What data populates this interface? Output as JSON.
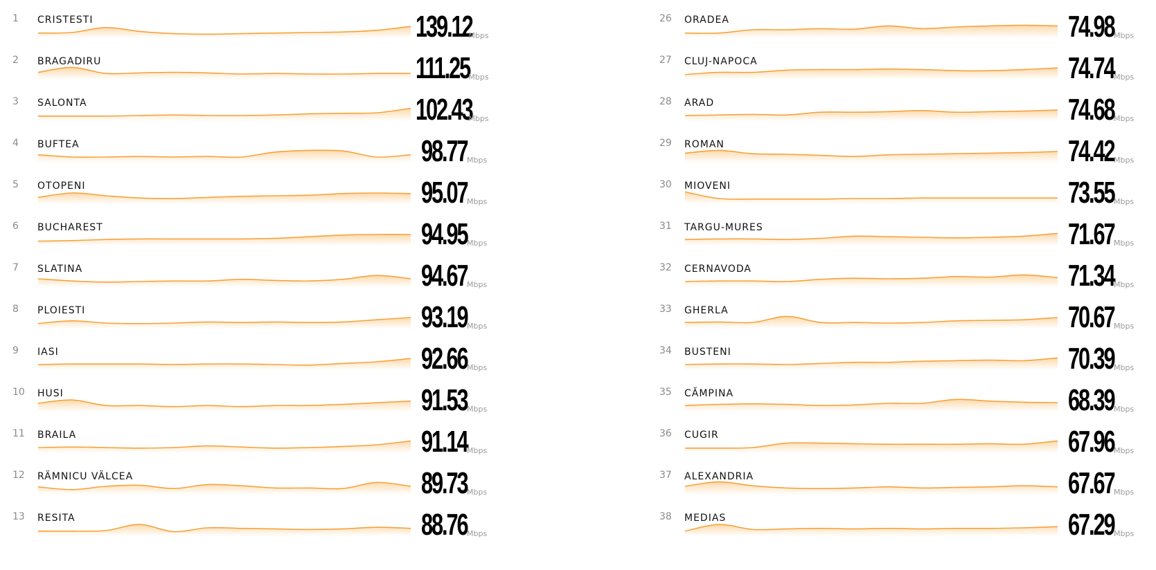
{
  "colors": {
    "line": "#f7a23b",
    "fill": "#fbd49e",
    "rank_text": "#8a8a8a",
    "city_text": "#111111",
    "value_text": "#000000",
    "unit_text": "#9a9a9a"
  },
  "chart_data": {
    "type": "table",
    "unit": "Mbps",
    "columns": [
      {
        "rows": [
          {
            "rank": "1",
            "city": "CRISTESTI",
            "value": "139.12",
            "unit": "Mbps",
            "trend": [
              0.2,
              0.25,
              0.7,
              0.35,
              0.15,
              0.1,
              0.15,
              0.2,
              0.25,
              0.3,
              0.45,
              0.8
            ]
          },
          {
            "rank": "2",
            "city": "BRAGADIRU",
            "value": "111.25",
            "unit": "Mbps",
            "trend": [
              0.4,
              0.85,
              0.3,
              0.35,
              0.4,
              0.35,
              0.25,
              0.3,
              0.25,
              0.25,
              0.3,
              0.3
            ]
          },
          {
            "rank": "3",
            "city": "SALONTA",
            "value": "102.43",
            "unit": "Mbps",
            "trend": [
              0.2,
              0.2,
              0.2,
              0.25,
              0.3,
              0.25,
              0.25,
              0.3,
              0.4,
              0.45,
              0.5,
              0.9
            ]
          },
          {
            "rank": "4",
            "city": "BUFTEA",
            "value": "98.77",
            "unit": "Mbps",
            "trend": [
              0.45,
              0.25,
              0.25,
              0.3,
              0.25,
              0.3,
              0.25,
              0.7,
              0.85,
              0.8,
              0.25,
              0.45
            ]
          },
          {
            "rank": "5",
            "city": "OTOPENI",
            "value": "95.07",
            "unit": "Mbps",
            "trend": [
              0.35,
              0.75,
              0.5,
              0.3,
              0.25,
              0.35,
              0.45,
              0.5,
              0.55,
              0.7,
              0.75,
              0.7
            ]
          },
          {
            "rank": "6",
            "city": "BUCHAREST",
            "value": "94.95",
            "unit": "Mbps",
            "trend": [
              0.15,
              0.2,
              0.3,
              0.35,
              0.35,
              0.35,
              0.35,
              0.4,
              0.55,
              0.7,
              0.75,
              0.75
            ]
          },
          {
            "rank": "7",
            "city": "SLATINA",
            "value": "94.67",
            "unit": "Mbps",
            "trend": [
              0.5,
              0.3,
              0.2,
              0.25,
              0.3,
              0.3,
              0.45,
              0.35,
              0.3,
              0.45,
              0.8,
              0.5
            ]
          },
          {
            "rank": "8",
            "city": "PLOIESTI",
            "value": "93.19",
            "unit": "Mbps",
            "trend": [
              0.2,
              0.45,
              0.25,
              0.2,
              0.25,
              0.35,
              0.3,
              0.35,
              0.3,
              0.35,
              0.55,
              0.75
            ]
          },
          {
            "rank": "9",
            "city": "IASI",
            "value": "92.66",
            "unit": "Mbps",
            "trend": [
              0.25,
              0.3,
              0.3,
              0.3,
              0.25,
              0.3,
              0.3,
              0.25,
              0.2,
              0.35,
              0.5,
              0.8
            ]
          },
          {
            "rank": "10",
            "city": "HUSI",
            "value": "91.53",
            "unit": "Mbps",
            "trend": [
              0.5,
              0.8,
              0.3,
              0.3,
              0.2,
              0.3,
              0.2,
              0.3,
              0.3,
              0.4,
              0.55,
              0.7
            ]
          },
          {
            "rank": "11",
            "city": "BRAILA",
            "value": "91.14",
            "unit": "Mbps",
            "trend": [
              0.25,
              0.3,
              0.25,
              0.2,
              0.25,
              0.4,
              0.3,
              0.2,
              0.25,
              0.35,
              0.5,
              0.85
            ]
          },
          {
            "rank": "12",
            "city": "RÄMNICU VÄLCEA",
            "value": "89.73",
            "unit": "Mbps",
            "trend": [
              0.45,
              0.2,
              0.5,
              0.6,
              0.3,
              0.65,
              0.55,
              0.35,
              0.35,
              0.3,
              0.85,
              0.5
            ]
          },
          {
            "rank": "13",
            "city": "RESITA",
            "value": "88.76",
            "unit": "Mbps",
            "trend": [
              0.2,
              0.2,
              0.25,
              0.8,
              0.15,
              0.5,
              0.45,
              0.4,
              0.35,
              0.4,
              0.55,
              0.45
            ]
          }
        ]
      },
      {
        "rows": [
          {
            "rank": "26",
            "city": "ORADEA",
            "value": "74.98",
            "unit": "Mbps",
            "trend": [
              0.2,
              0.2,
              0.5,
              0.5,
              0.6,
              0.55,
              0.85,
              0.6,
              0.75,
              0.85,
              0.9,
              0.85
            ]
          },
          {
            "rank": "27",
            "city": "CLUJ-NAPOCA",
            "value": "74.74",
            "unit": "Mbps",
            "trend": [
              0.2,
              0.4,
              0.4,
              0.6,
              0.65,
              0.65,
              0.7,
              0.65,
              0.55,
              0.55,
              0.65,
              0.8
            ]
          },
          {
            "rank": "28",
            "city": "ARAD",
            "value": "74.68",
            "unit": "Mbps",
            "trend": [
              0.25,
              0.3,
              0.35,
              0.3,
              0.55,
              0.55,
              0.6,
              0.7,
              0.55,
              0.6,
              0.65,
              0.75
            ]
          },
          {
            "rank": "29",
            "city": "ROMAN",
            "value": "74.42",
            "unit": "Mbps",
            "trend": [
              0.6,
              0.85,
              0.55,
              0.5,
              0.4,
              0.3,
              0.45,
              0.5,
              0.55,
              0.6,
              0.65,
              0.75
            ]
          },
          {
            "rank": "30",
            "city": "MIOVENI",
            "value": "73.55",
            "unit": "Mbps",
            "trend": [
              0.85,
              0.25,
              0.2,
              0.2,
              0.2,
              0.25,
              0.25,
              0.3,
              0.3,
              0.3,
              0.3,
              0.3
            ]
          },
          {
            "rank": "31",
            "city": "TARGU-MURES",
            "value": "71.67",
            "unit": "Mbps",
            "trend": [
              0.3,
              0.35,
              0.35,
              0.3,
              0.4,
              0.6,
              0.55,
              0.5,
              0.45,
              0.5,
              0.6,
              0.85
            ]
          },
          {
            "rank": "32",
            "city": "CERNAVODA",
            "value": "71.34",
            "unit": "Mbps",
            "trend": [
              0.25,
              0.3,
              0.3,
              0.25,
              0.45,
              0.55,
              0.5,
              0.55,
              0.7,
              0.65,
              0.85,
              0.6
            ]
          },
          {
            "rank": "33",
            "city": "GHERLA",
            "value": "70.67",
            "unit": "Mbps",
            "trend": [
              0.3,
              0.35,
              0.3,
              0.85,
              0.3,
              0.3,
              0.25,
              0.3,
              0.45,
              0.5,
              0.55,
              0.75
            ]
          },
          {
            "rank": "34",
            "city": "BUSTENI",
            "value": "70.39",
            "unit": "Mbps",
            "trend": [
              0.25,
              0.3,
              0.3,
              0.25,
              0.35,
              0.45,
              0.45,
              0.55,
              0.6,
              0.65,
              0.6,
              0.85
            ]
          },
          {
            "rank": "35",
            "city": "CĂMPINA",
            "value": "68.39",
            "unit": "Mbps",
            "trend": [
              0.3,
              0.4,
              0.45,
              0.4,
              0.3,
              0.35,
              0.5,
              0.5,
              0.85,
              0.7,
              0.6,
              0.55
            ]
          },
          {
            "rank": "36",
            "city": "CUGIR",
            "value": "67.96",
            "unit": "Mbps",
            "trend": [
              0.2,
              0.2,
              0.25,
              0.65,
              0.65,
              0.6,
              0.55,
              0.55,
              0.55,
              0.6,
              0.55,
              0.85
            ]
          },
          {
            "rank": "37",
            "city": "ALEXANDRIA",
            "value": "67.67",
            "unit": "Mbps",
            "trend": [
              0.5,
              0.9,
              0.55,
              0.35,
              0.3,
              0.35,
              0.45,
              0.35,
              0.4,
              0.45,
              0.55,
              0.45
            ]
          },
          {
            "rank": "38",
            "city": "MEDIAS",
            "value": "67.29",
            "unit": "Mbps",
            "trend": [
              0.2,
              0.8,
              0.35,
              0.4,
              0.45,
              0.4,
              0.45,
              0.4,
              0.45,
              0.45,
              0.5,
              0.6
            ]
          }
        ]
      }
    ]
  }
}
